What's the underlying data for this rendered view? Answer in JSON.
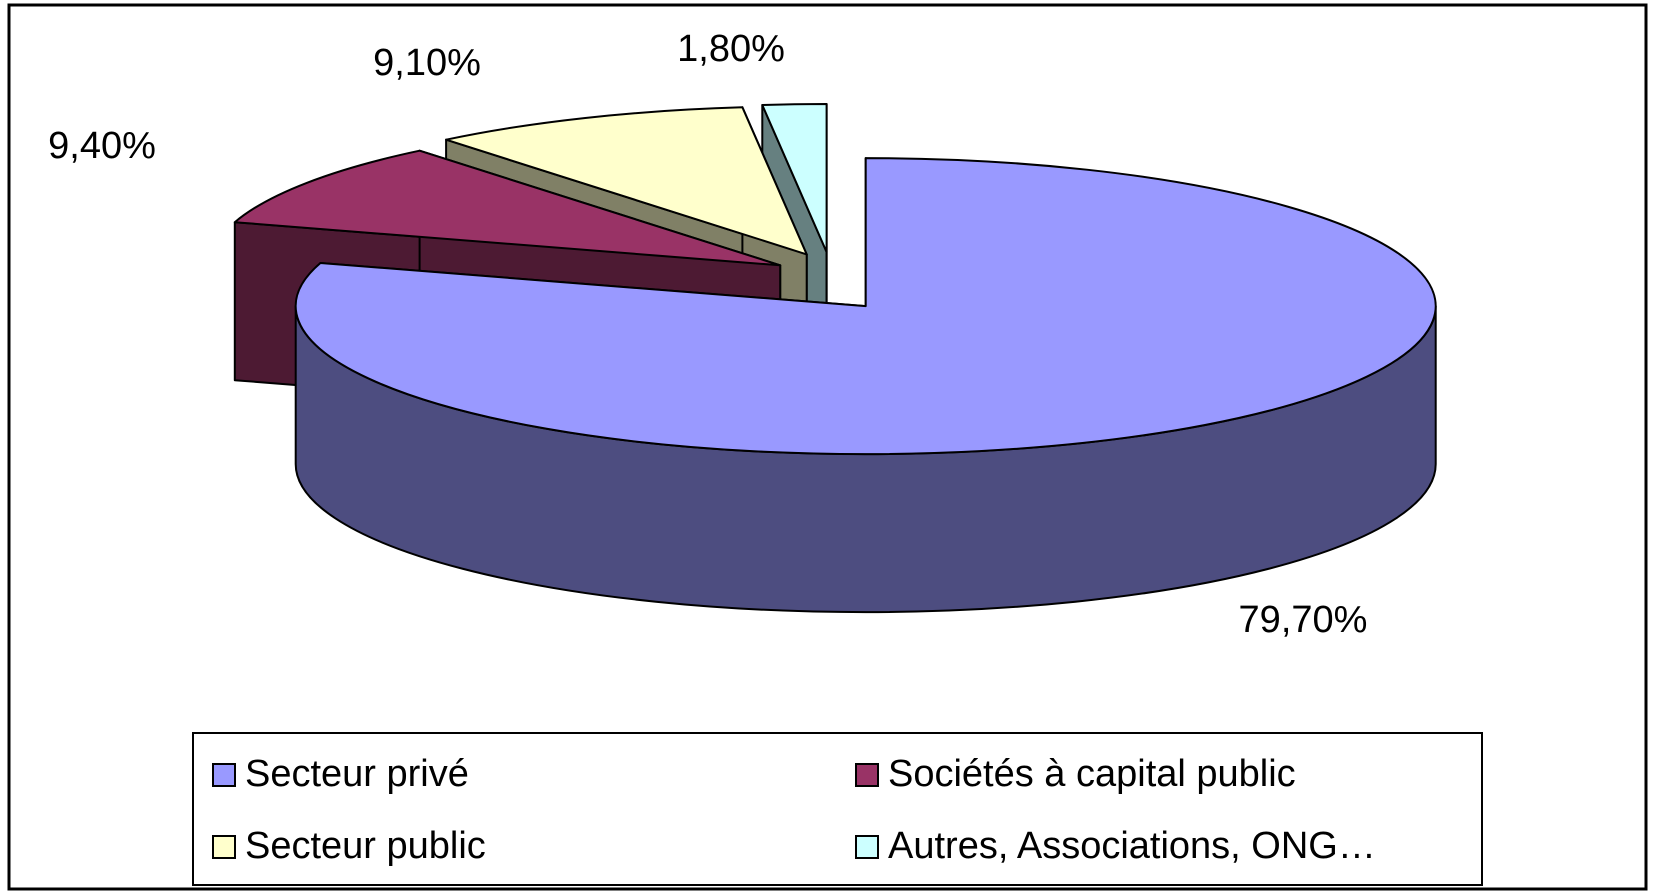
{
  "chart_data": {
    "type": "pie",
    "three_d": true,
    "categories": [
      "Secteur privé",
      "Sociétés à capital public",
      "Secteur public",
      "Autres, Associations, ONG…"
    ],
    "values": [
      79.7,
      9.4,
      9.1,
      1.8
    ],
    "value_labels": [
      "79,70%",
      "9,40%",
      "9,10%",
      "1,80%"
    ],
    "colors": [
      "#9999ff",
      "#993366",
      "#ffffcc",
      "#ccffff"
    ],
    "side_colors": [
      "#4d4d80",
      "#4d1a33",
      "#808066",
      "#668080"
    ],
    "legend": "bottom"
  }
}
